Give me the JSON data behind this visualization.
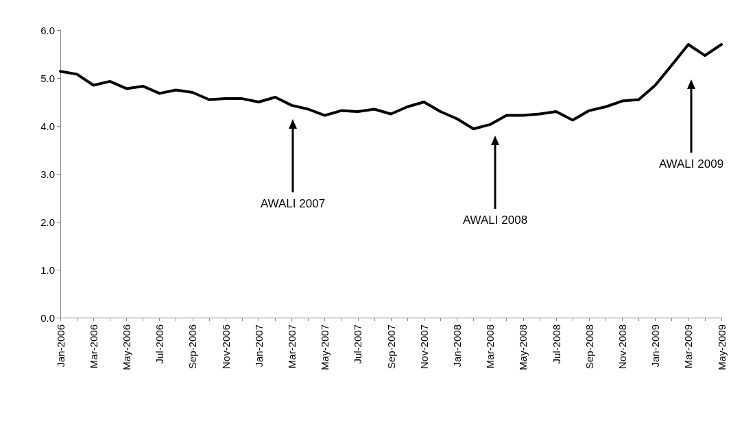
{
  "chart_data": {
    "type": "line",
    "categories": [
      "Jan-2006",
      null,
      "Mar-2006",
      null,
      "May-2006",
      null,
      "Jul-2006",
      null,
      "Sep-2006",
      null,
      "Nov-2006",
      null,
      "Jan-2007",
      null,
      "Mar-2007",
      null,
      "May-2007",
      null,
      "Jul-2007",
      null,
      "Sep-2007",
      null,
      "Nov-2007",
      null,
      "Jan-2008",
      null,
      "Mar-2008",
      null,
      "May-2008",
      null,
      "Jul-2008",
      null,
      "Sep-2008",
      null,
      "Nov-2008",
      null,
      "Jan-2009",
      null,
      "Mar-2009",
      null,
      "May-2009"
    ],
    "series": [
      {
        "color": "#000000",
        "values": [
          5.14,
          5.08,
          4.85,
          4.93,
          4.78,
          4.83,
          4.68,
          4.75,
          4.7,
          4.55,
          4.57,
          4.57,
          4.5,
          4.6,
          4.43,
          4.35,
          4.22,
          4.32,
          4.3,
          4.35,
          4.25,
          4.4,
          4.5,
          4.3,
          4.15,
          3.94,
          4.03,
          4.22,
          4.22,
          4.25,
          4.3,
          4.12,
          4.32,
          4.4,
          4.52,
          4.55,
          4.85,
          5.27,
          5.7,
          5.47,
          5.7
        ]
      }
    ],
    "ylim": [
      0,
      6
    ],
    "yticks": [
      {
        "value": 0,
        "label": "0.0"
      },
      {
        "value": 1,
        "label": "1.0"
      },
      {
        "value": 2,
        "label": "2.0"
      },
      {
        "value": 3,
        "label": "3.0"
      },
      {
        "value": 4,
        "label": "4.0"
      },
      {
        "value": 5,
        "label": "5.0"
      },
      {
        "value": 6,
        "label": "6.0"
      }
    ],
    "annotations": [
      "AWALI 2007",
      "AWALI 2008",
      "AWALI 2009"
    ],
    "grid": false,
    "marker": "none",
    "line_style": "solid"
  }
}
